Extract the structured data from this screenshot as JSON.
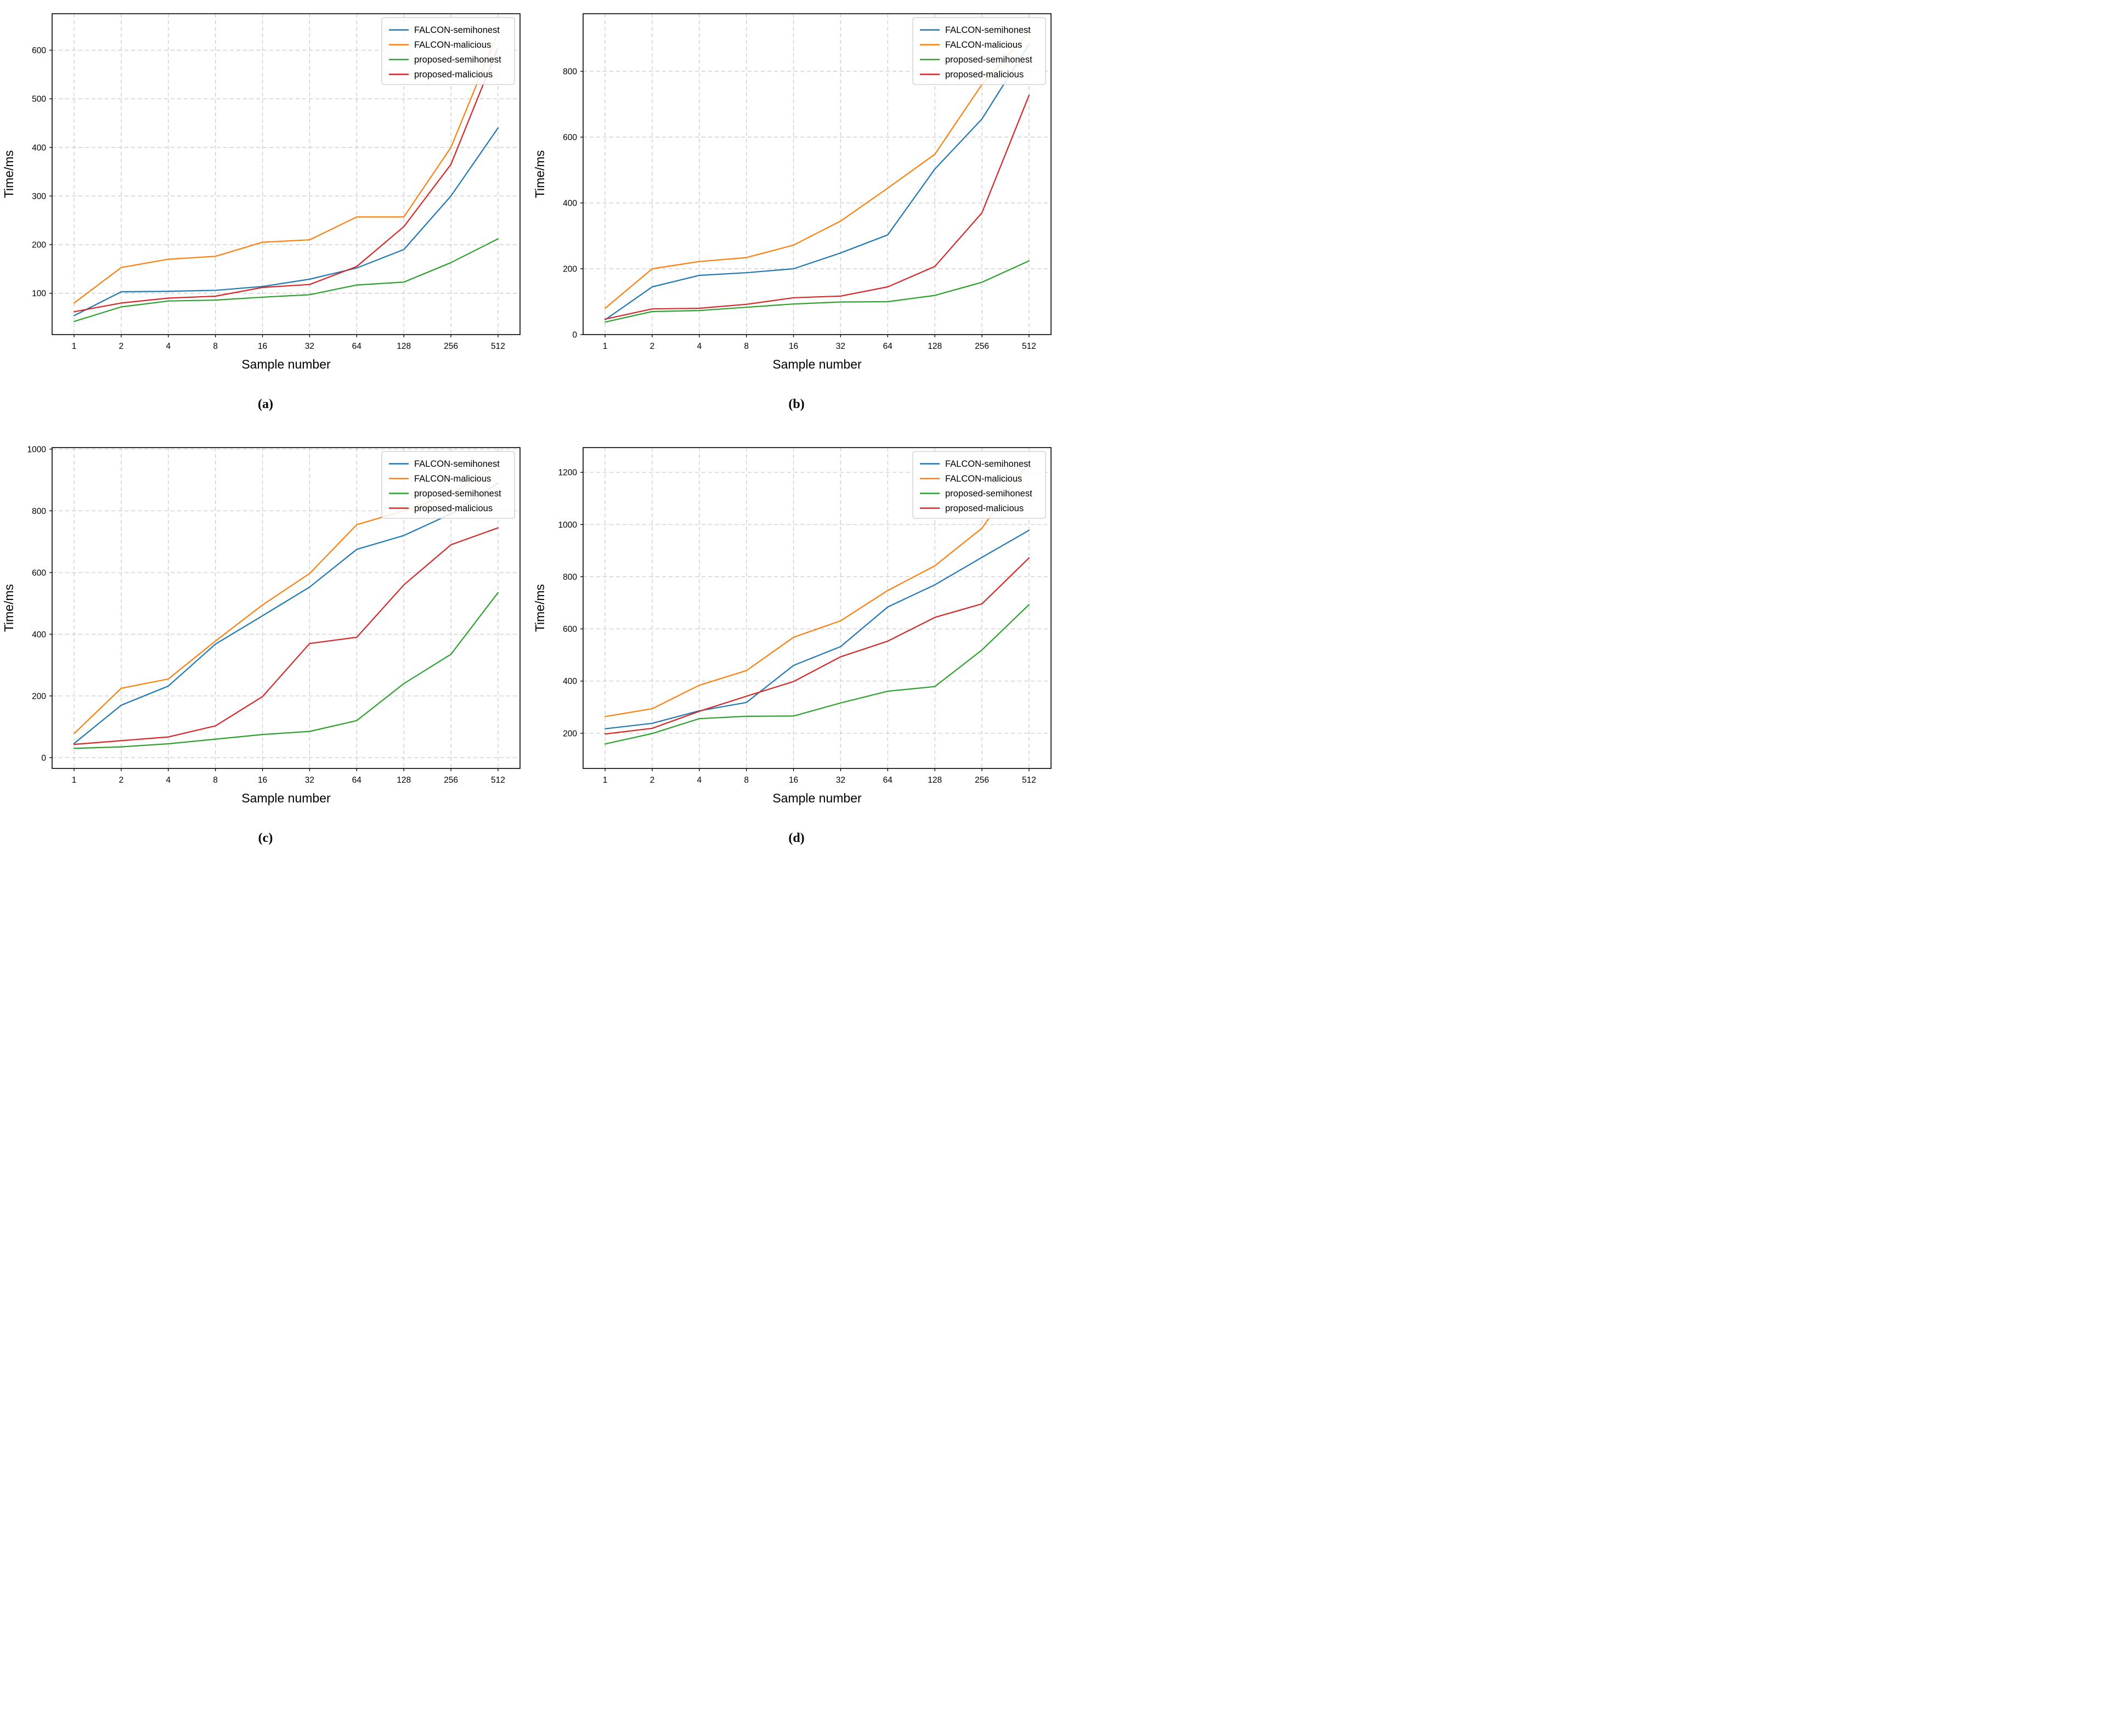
{
  "shared": {
    "xlabel": "Sample number",
    "ylabel": "Time/ms",
    "legend_position": "upper right",
    "grid": true,
    "grid_color": "#c8c8c8",
    "axis_color": "#000000",
    "background": "#ffffff",
    "series_colors": {
      "FALCON-semihonest": "#1f77b4",
      "FALCON-malicious": "#ff7f0e",
      "proposed-semihonest": "#2ca02c",
      "proposed-malicious": "#d62728"
    },
    "legend_entries": [
      "FALCON-semihonest",
      "FALCON-malicious",
      "proposed-semihonest",
      "proposed-malicious"
    ]
  },
  "chart_data": [
    {
      "id": "a",
      "caption": "(a)",
      "type": "line",
      "title": "",
      "xlabel": "Sample number",
      "ylabel": "Time/ms",
      "x_categories": [
        1,
        2,
        4,
        8,
        16,
        32,
        64,
        128,
        256,
        512
      ],
      "ylim": [
        15,
        675
      ],
      "yticks": [
        100,
        200,
        300,
        400,
        500,
        600
      ],
      "legend_position": "upper right",
      "grid": true,
      "series": [
        {
          "name": "FALCON-semihonest",
          "color": "#1f77b4",
          "values": [
            54,
            103,
            104,
            106,
            114,
            129,
            152,
            190,
            300,
            440
          ]
        },
        {
          "name": "FALCON-malicious",
          "color": "#ff7f0e",
          "values": [
            80,
            153,
            170,
            176,
            205,
            210,
            257,
            257,
            400,
            637
          ]
        },
        {
          "name": "proposed-semihonest",
          "color": "#2ca02c",
          "values": [
            42,
            72,
            84,
            86,
            92,
            97,
            117,
            123,
            163,
            212
          ]
        },
        {
          "name": "proposed-malicious",
          "color": "#d62728",
          "values": [
            62,
            80,
            90,
            94,
            112,
            118,
            155,
            237,
            365,
            605
          ]
        }
      ]
    },
    {
      "id": "b",
      "caption": "(b)",
      "type": "line",
      "title": "",
      "xlabel": "Sample number",
      "ylabel": "Time/ms",
      "x_categories": [
        1,
        2,
        4,
        8,
        16,
        32,
        64,
        128,
        256,
        512
      ],
      "ylim": [
        0,
        975
      ],
      "yticks": [
        0,
        200,
        400,
        600,
        800
      ],
      "legend_position": "upper right",
      "grid": true,
      "series": [
        {
          "name": "FALCON-semihonest",
          "color": "#1f77b4",
          "values": [
            45,
            145,
            180,
            188,
            200,
            248,
            303,
            503,
            655,
            882
          ]
        },
        {
          "name": "FALCON-malicious",
          "color": "#ff7f0e",
          "values": [
            80,
            200,
            222,
            234,
            272,
            345,
            445,
            548,
            760,
            920
          ]
        },
        {
          "name": "proposed-semihonest",
          "color": "#2ca02c",
          "values": [
            38,
            70,
            73,
            83,
            93,
            99,
            100,
            119,
            159,
            224
          ]
        },
        {
          "name": "proposed-malicious",
          "color": "#d62728",
          "values": [
            47,
            78,
            80,
            92,
            112,
            117,
            145,
            207,
            370,
            727
          ]
        }
      ]
    },
    {
      "id": "c",
      "caption": "(c)",
      "type": "line",
      "title": "",
      "xlabel": "Sample number",
      "ylabel": "Time/ms",
      "x_categories": [
        1,
        2,
        4,
        8,
        16,
        32,
        64,
        128,
        256,
        512
      ],
      "ylim": [
        -35,
        1005
      ],
      "yticks": [
        0,
        200,
        400,
        600,
        800,
        1000
      ],
      "legend_position": "upper right",
      "grid": true,
      "series": [
        {
          "name": "FALCON-semihonest",
          "color": "#1f77b4",
          "values": [
            46,
            170,
            232,
            368,
            460,
            553,
            675,
            720,
            790,
            890
          ]
        },
        {
          "name": "FALCON-malicious",
          "color": "#ff7f0e",
          "values": [
            78,
            225,
            255,
            378,
            495,
            597,
            755,
            800,
            855,
            948
          ]
        },
        {
          "name": "proposed-semihonest",
          "color": "#2ca02c",
          "values": [
            30,
            35,
            45,
            60,
            75,
            85,
            120,
            240,
            335,
            535
          ]
        },
        {
          "name": "proposed-malicious",
          "color": "#d62728",
          "values": [
            43,
            55,
            67,
            103,
            198,
            370,
            390,
            560,
            690,
            745
          ]
        }
      ]
    },
    {
      "id": "d",
      "caption": "(d)",
      "type": "line",
      "title": "",
      "xlabel": "Sample number",
      "ylabel": "Time/ms",
      "x_categories": [
        1,
        2,
        4,
        8,
        16,
        32,
        64,
        128,
        256,
        512
      ],
      "ylim": [
        65,
        1295
      ],
      "yticks": [
        200,
        400,
        600,
        800,
        1000,
        1200
      ],
      "legend_position": "upper right",
      "grid": true,
      "series": [
        {
          "name": "FALCON-semihonest",
          "color": "#1f77b4",
          "values": [
            217,
            238,
            286,
            318,
            460,
            532,
            684,
            769,
            874,
            978
          ]
        },
        {
          "name": "FALCON-malicious",
          "color": "#ff7f0e",
          "values": [
            264,
            294,
            384,
            440,
            568,
            631,
            747,
            842,
            986,
            1239
          ]
        },
        {
          "name": "proposed-semihonest",
          "color": "#2ca02c",
          "values": [
            159,
            199,
            256,
            265,
            266,
            316,
            361,
            379,
            519,
            693
          ]
        },
        {
          "name": "proposed-malicious",
          "color": "#d62728",
          "values": [
            197,
            219,
            284,
            342,
            398,
            493,
            553,
            644,
            696,
            872
          ]
        }
      ]
    }
  ]
}
